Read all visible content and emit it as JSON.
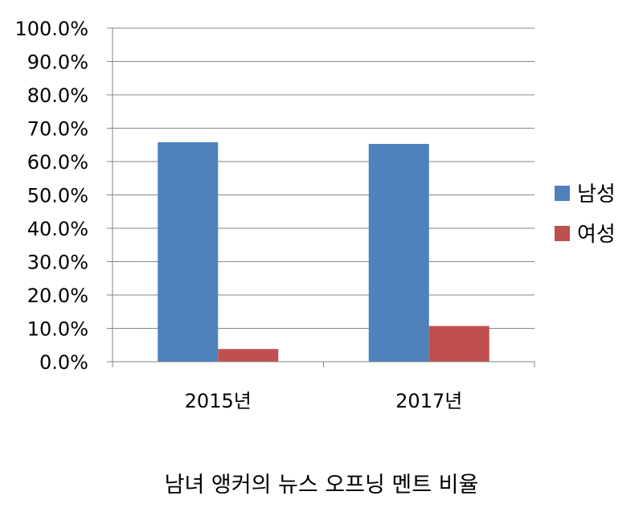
{
  "chart_data": {
    "type": "bar",
    "title": "남녀 앵커의 뉴스 오프닝 멘트 비율",
    "xlabel": "",
    "ylabel": "",
    "categories": [
      "2015년",
      "2017년"
    ],
    "series": [
      {
        "name": "남성",
        "color": "#4F81BD",
        "values": [
          65.8,
          65.3
        ]
      },
      {
        "name": "여성",
        "color": "#C0504D",
        "values": [
          3.8,
          10.7
        ]
      }
    ],
    "ylim": [
      0,
      100
    ],
    "yticks": [
      "0.0%",
      "10.0%",
      "20.0%",
      "30.0%",
      "40.0%",
      "50.0%",
      "60.0%",
      "70.0%",
      "80.0%",
      "90.0%",
      "100.0%"
    ],
    "grid": true,
    "legend_position": "right"
  }
}
